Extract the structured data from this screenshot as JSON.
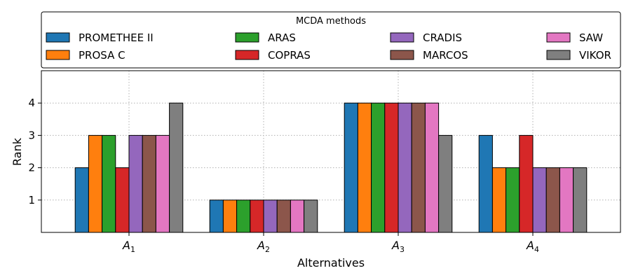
{
  "chart_data": {
    "type": "bar",
    "categories": [
      "A1",
      "A2",
      "A3",
      "A4"
    ],
    "category_labels": [
      {
        "base": "A",
        "sub": "1"
      },
      {
        "base": "A",
        "sub": "2"
      },
      {
        "base": "A",
        "sub": "3"
      },
      {
        "base": "A",
        "sub": "4"
      }
    ],
    "series": [
      {
        "name": "PROMETHEE II",
        "color": "#1f77b4",
        "values": [
          2,
          1,
          4,
          3
        ]
      },
      {
        "name": "PROSA C",
        "color": "#ff7f0e",
        "values": [
          3,
          1,
          4,
          2
        ]
      },
      {
        "name": "ARAS",
        "color": "#2ca02c",
        "values": [
          3,
          1,
          4,
          2
        ]
      },
      {
        "name": "COPRAS",
        "color": "#d62728",
        "values": [
          2,
          1,
          4,
          3
        ]
      },
      {
        "name": "CRADIS",
        "color": "#9467bd",
        "values": [
          3,
          1,
          4,
          2
        ]
      },
      {
        "name": "MARCOS",
        "color": "#8c564b",
        "values": [
          3,
          1,
          4,
          2
        ]
      },
      {
        "name": "SAW",
        "color": "#e377c2",
        "values": [
          3,
          1,
          4,
          2
        ]
      },
      {
        "name": "VIKOR",
        "color": "#7f7f7f",
        "values": [
          4,
          1,
          3,
          2
        ]
      }
    ],
    "legend_title": "MCDA methods",
    "legend_position": "top",
    "legend_columns": 4,
    "xlabel": "Alternatives",
    "ylabel": "Rank",
    "yticks": [
      1,
      2,
      3,
      4
    ],
    "ylim": [
      0,
      5
    ],
    "grid": true
  }
}
